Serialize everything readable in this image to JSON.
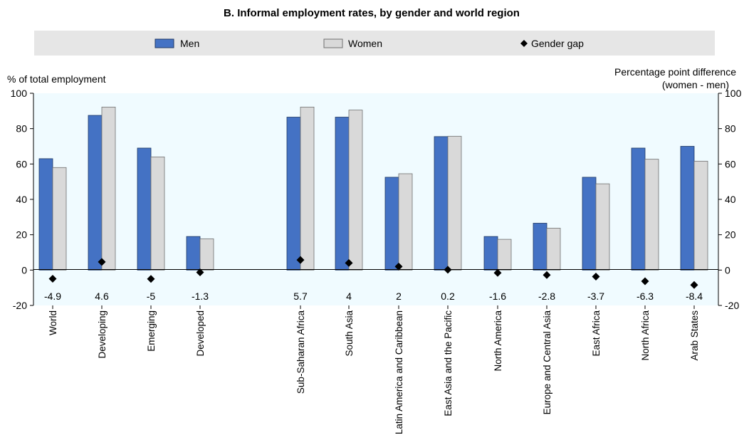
{
  "chart_data": {
    "type": "bar",
    "title": "B. Informal employment rates, by gender and world region",
    "ylabel": "% of total employment",
    "y2label_line1": "Percentage point difference",
    "y2label_line2": "(women - men)",
    "ylim": [
      -20,
      100
    ],
    "y2lim": [
      -20,
      100
    ],
    "yticks": [
      "-20",
      "0",
      "20",
      "40",
      "60",
      "80",
      "100"
    ],
    "legend_position": "top",
    "categories": [
      "World",
      "Developing",
      "Emerging",
      "Developed",
      "Sub-Saharan Africa",
      "South Asia",
      "Latin America and Caribbean",
      "East Asia and the Pacific",
      "North America",
      "Europe and Central Asia",
      "East Africa",
      "North Africa",
      "Arab States"
    ],
    "series": [
      {
        "name": "Men",
        "type": "bar",
        "color": "#4472C4",
        "values": [
          63,
          87.5,
          69,
          19,
          86.5,
          86.5,
          52.5,
          75.5,
          19,
          26.5,
          52.5,
          69,
          70
        ]
      },
      {
        "name": "Women",
        "type": "bar",
        "color": "#D9D9D9",
        "values": [
          58,
          92.2,
          64,
          17.7,
          92.2,
          90.5,
          54.5,
          75.7,
          17.4,
          23.7,
          48.8,
          62.7,
          61.6
        ]
      },
      {
        "name": "Gender gap",
        "type": "marker",
        "color": "#000000",
        "values": [
          -4.9,
          4.6,
          -5,
          -1.3,
          5.7,
          4,
          2,
          0.2,
          -1.6,
          -2.8,
          -3.7,
          -6.3,
          -8.4
        ],
        "labels": [
          "-4.9",
          "4.6",
          "-5",
          "-1.3",
          "5.7",
          "4",
          "2",
          "0.2",
          "-1.6",
          "-2.8",
          "-3.7",
          "-6.3",
          "-8.4"
        ]
      }
    ],
    "plot_background": "#F0FBFF",
    "legend_background": "#E6E6E6",
    "grid": false
  }
}
